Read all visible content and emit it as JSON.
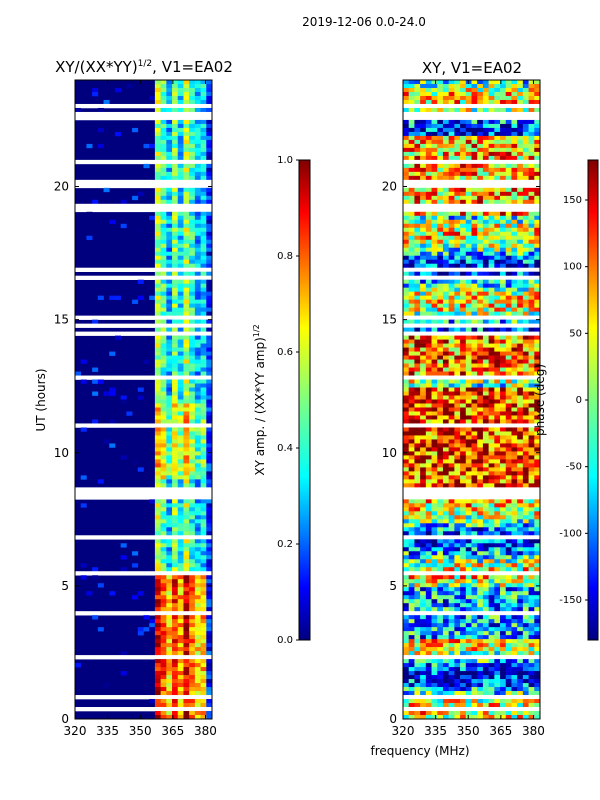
{
  "figure_title": "2019-12-06 0.0-24.0",
  "colors": {
    "jet": [
      "#00007f",
      "#0000ff",
      "#007fff",
      "#00ffff",
      "#7fff7f",
      "#ffff00",
      "#ff7f00",
      "#ff0000",
      "#7f0000"
    ],
    "background": "#ffffff"
  },
  "chart_data": [
    {
      "type": "heatmap",
      "title_main": "XY/(XX*YY)",
      "title_sup": "1/2",
      "title_suffix": ", V1=EA02",
      "ylabel": "UT (hours)",
      "xlabel": "",
      "x_range": [
        320,
        383
      ],
      "y_range": [
        0,
        24
      ],
      "x_ticks": [
        320,
        335,
        350,
        365,
        380
      ],
      "y_ticks": [
        0,
        5,
        10,
        15,
        20
      ],
      "colorbar": {
        "label": "XY amp. / (XX*YY amp)",
        "label_sup": "1/2",
        "range": [
          0.0,
          1.0
        ],
        "ticks": [
          "0.0",
          "0.2",
          "0.4",
          "0.6",
          "0.8",
          "1.0"
        ]
      }
    },
    {
      "type": "heatmap",
      "title_main": "XY, V1=EA02",
      "ylabel": "",
      "xlabel": "frequency (MHz)",
      "x_range": [
        320,
        383
      ],
      "y_range": [
        0,
        24
      ],
      "x_ticks": [
        320,
        335,
        350,
        365,
        380
      ],
      "y_ticks": [
        0,
        5,
        10,
        15,
        20
      ],
      "colorbar": {
        "label": "phase (deg)",
        "range": [
          -180,
          180
        ],
        "ticks": [
          "-150",
          "-100",
          "-50",
          "0",
          "50",
          "100",
          "150"
        ]
      }
    }
  ]
}
